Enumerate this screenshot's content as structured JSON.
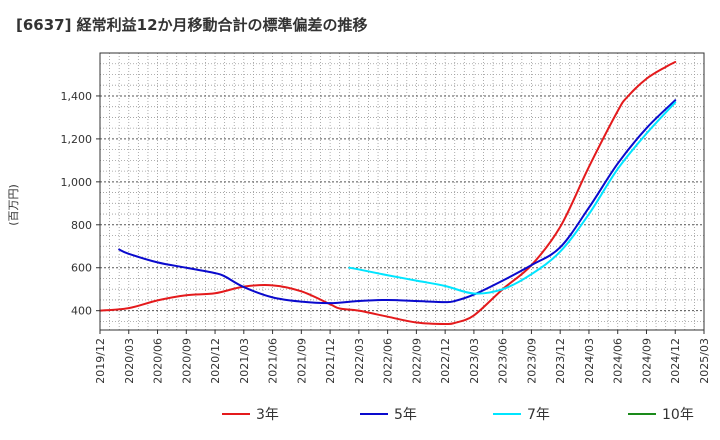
{
  "chart_data": {
    "type": "line",
    "title": "[6637]  経常利益12か月移動合計の標準偏差の推移",
    "ylabel": "(百万円)",
    "xlabel": "",
    "ylim": [
      310,
      1600
    ],
    "yticks": [
      400,
      600,
      800,
      1000,
      1200,
      1400
    ],
    "ytick_labels": [
      "400",
      "600",
      "800",
      "1,000",
      "1,200",
      "1,400"
    ],
    "xlim": [
      "2019-12",
      "2025-03"
    ],
    "xtick_labels": [
      "2019/12",
      "2020/03",
      "2020/06",
      "2020/09",
      "2020/12",
      "2021/03",
      "2021/06",
      "2021/09",
      "2021/12",
      "2022/03",
      "2022/06",
      "2022/09",
      "2022/12",
      "2023/03",
      "2023/06",
      "2023/09",
      "2023/12",
      "2024/03",
      "2024/06",
      "2024/09",
      "2024/12",
      "2025/03"
    ],
    "grid": true,
    "legend_position": "bottom",
    "series": [
      {
        "name": "3年",
        "color": "#e41a1c",
        "x": [
          "2019-12",
          "2020-03",
          "2020-06",
          "2020-09",
          "2020-12",
          "2021-03",
          "2021-06",
          "2021-09",
          "2021-12",
          "2022-01",
          "2022-03",
          "2022-06",
          "2022-09",
          "2022-12",
          "2023-01",
          "2023-03",
          "2023-06",
          "2023-09",
          "2023-12",
          "2024-03",
          "2024-06",
          "2024-07",
          "2024-09",
          "2024-11",
          "2024-12"
        ],
        "values": [
          400,
          412,
          448,
          472,
          481,
          512,
          518,
          490,
          430,
          410,
          400,
          372,
          345,
          338,
          343,
          378,
          500,
          612,
          790,
          1070,
          1330,
          1395,
          1480,
          1535,
          1558
        ]
      },
      {
        "name": "5年",
        "color": "#0a0acd",
        "x": [
          "2020-02",
          "2020-03",
          "2020-06",
          "2020-09",
          "2020-12",
          "2021-01",
          "2021-03",
          "2021-06",
          "2021-09",
          "2021-12",
          "2022-03",
          "2022-06",
          "2022-09",
          "2022-12",
          "2023-01",
          "2023-03",
          "2023-06",
          "2023-09",
          "2023-12",
          "2024-03",
          "2024-06",
          "2024-09",
          "2024-12"
        ],
        "values": [
          685,
          665,
          625,
          600,
          575,
          560,
          510,
          462,
          442,
          435,
          445,
          450,
          445,
          440,
          445,
          475,
          540,
          612,
          695,
          880,
          1085,
          1250,
          1380
        ]
      },
      {
        "name": "7年",
        "color": "#00e5ff",
        "x": [
          "2022-02",
          "2022-03",
          "2022-06",
          "2022-09",
          "2022-12",
          "2023-03",
          "2023-06",
          "2023-09",
          "2023-12",
          "2024-03",
          "2024-06",
          "2024-09",
          "2024-12"
        ],
        "values": [
          600,
          592,
          565,
          540,
          515,
          480,
          500,
          570,
          675,
          850,
          1060,
          1225,
          1370
        ]
      },
      {
        "name": "10年",
        "color": "#1a8a1a",
        "x": [],
        "values": []
      }
    ]
  }
}
